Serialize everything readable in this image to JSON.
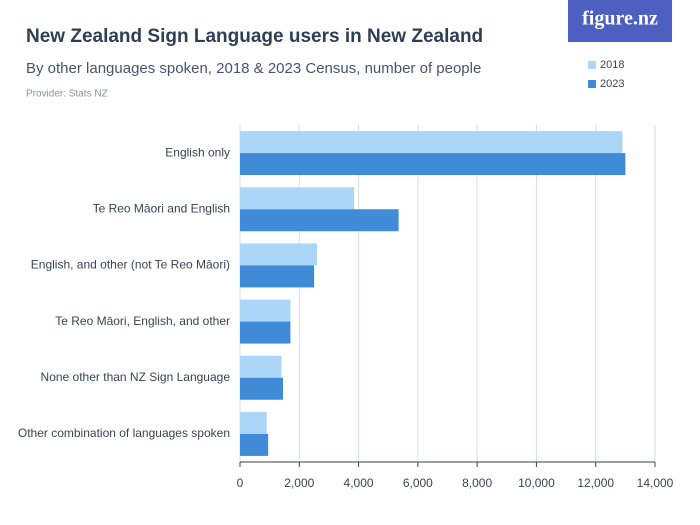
{
  "chart_data": {
    "type": "bar",
    "orientation": "horizontal",
    "logo": "figure.nz",
    "title": "New Zealand Sign Language users in New Zealand",
    "subtitle": "By other languages spoken, 2018 & 2023 Census, number of people",
    "provider": "Provider: Stats NZ",
    "categories": [
      "English only",
      "Te Reo Māori and English",
      "English, and other (not Te Reo Māori)",
      "Te Reo Māori, English, and other",
      "None other than NZ Sign Language",
      "Other combination of languages spoken"
    ],
    "series": [
      {
        "name": "2018",
        "color": "#acd6f8",
        "values": [
          12900,
          3850,
          2600,
          1700,
          1400,
          900
        ]
      },
      {
        "name": "2023",
        "color": "#3f8bd8",
        "values": [
          13000,
          5350,
          2500,
          1700,
          1450,
          950
        ]
      }
    ],
    "xlim": [
      0,
      14000
    ],
    "xticks": [
      0,
      {
        "value": 2000,
        "label": "2,000"
      },
      {
        "value": 4000,
        "label": "4,000"
      },
      {
        "value": 6000,
        "label": "6,000"
      },
      {
        "value": 8000,
        "label": "8,000"
      },
      {
        "value": 10000,
        "label": "10,000"
      },
      {
        "value": 12000,
        "label": "12,000"
      },
      {
        "value": 14000,
        "label": "14,000"
      }
    ],
    "grid": true,
    "legend": "top-right"
  }
}
